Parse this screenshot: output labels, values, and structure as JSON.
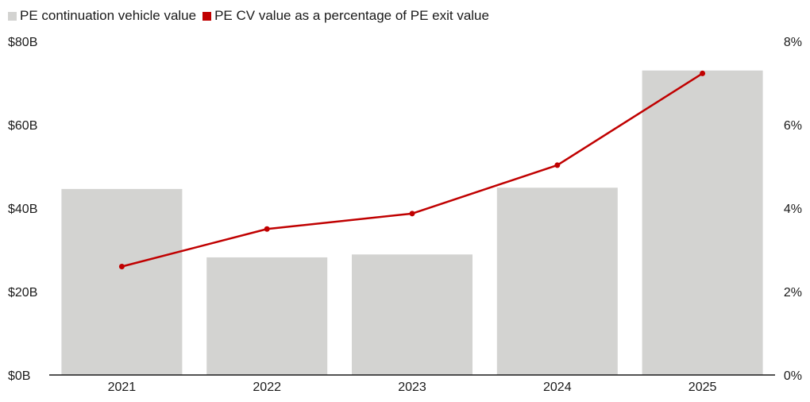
{
  "chart_data": {
    "type": "bar",
    "categories": [
      "2021",
      "2022",
      "2023",
      "2024",
      "2025"
    ],
    "series": [
      {
        "name": "PE continuation vehicle value",
        "kind": "bar",
        "axis": "left",
        "color": "#d3d3d1",
        "values": [
          44.6,
          28.2,
          28.9,
          44.9,
          73.0
        ]
      },
      {
        "name": "PE CV value as a percentage of PE exit value",
        "kind": "line",
        "axis": "right",
        "color": "#c00000",
        "values": [
          2.6,
          3.5,
          3.87,
          5.03,
          7.23
        ]
      }
    ],
    "y_left": {
      "min": 0,
      "max": 80,
      "ticks": [
        0,
        20,
        40,
        60,
        80
      ],
      "tick_labels": [
        "$0B",
        "$20B",
        "$40B",
        "$60B",
        "$80B"
      ]
    },
    "y_right": {
      "min": 0,
      "max": 8,
      "ticks": [
        0,
        2,
        4,
        6,
        8
      ],
      "tick_labels": [
        "0%",
        "2%",
        "4%",
        "6%",
        "8%"
      ]
    },
    "legend_position": "top-left",
    "grid": false
  }
}
